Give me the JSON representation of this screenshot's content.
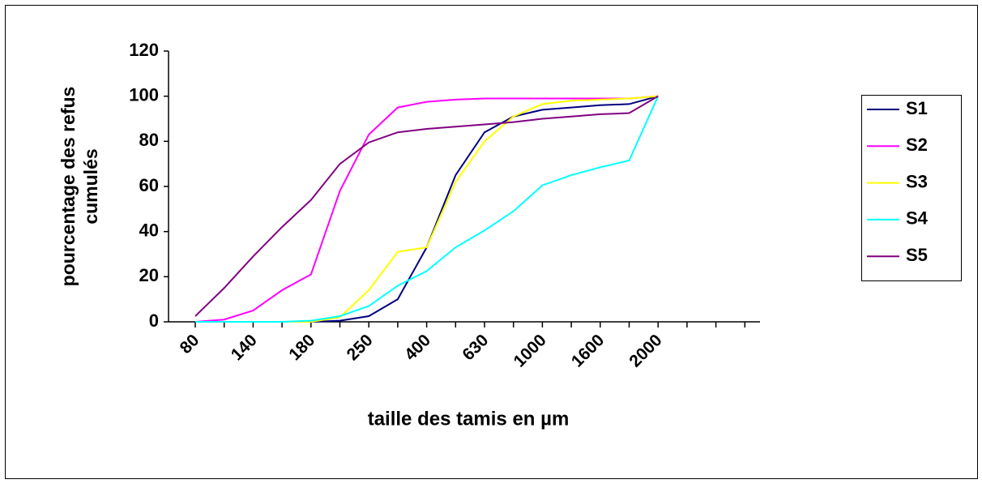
{
  "chart_data": {
    "type": "line",
    "xlabel": "taille des tamis en µm",
    "ylabel": [
      "pourcentage des refus",
      "cumulés"
    ],
    "categories": [
      "80",
      null,
      "140",
      null,
      "180",
      null,
      "250",
      null,
      "400",
      null,
      "630",
      null,
      "1000",
      null,
      "1600",
      null,
      "2000",
      null,
      null,
      null
    ],
    "series": [
      {
        "name": "S1",
        "color": "#000080",
        "values": [
          0,
          0,
          0,
          0,
          0,
          0.5,
          2.5,
          10,
          33,
          65,
          84,
          91,
          94,
          95,
          96,
          96.5,
          100,
          null,
          null,
          null
        ]
      },
      {
        "name": "S2",
        "color": "#ff00ff",
        "values": [
          0,
          1,
          5,
          14,
          21,
          58,
          83,
          95,
          97.5,
          98.5,
          99,
          99,
          99,
          99,
          99,
          99,
          100,
          null,
          null,
          null
        ]
      },
      {
        "name": "S3",
        "color": "#ffff00",
        "values": [
          0,
          0,
          0,
          0,
          0,
          2,
          14,
          31,
          33,
          62,
          80,
          91,
          96.5,
          98,
          98.5,
          99,
          100,
          null,
          null,
          null
        ]
      },
      {
        "name": "S4",
        "color": "#00ffff",
        "values": [
          0,
          0,
          0,
          0,
          0.5,
          2.5,
          7,
          16,
          22.5,
          33,
          40.5,
          49,
          60.5,
          65,
          68.5,
          71.5,
          100,
          null,
          null,
          null
        ]
      },
      {
        "name": "S5",
        "color": "#800080",
        "values": [
          2.5,
          15,
          29,
          42,
          54,
          70,
          79.5,
          84,
          85.5,
          86.5,
          87.5,
          88.5,
          90,
          91,
          92,
          92.5,
          100,
          null,
          null,
          null
        ]
      }
    ],
    "ylim": [
      0,
      120
    ],
    "yticks": [
      0,
      20,
      40,
      60,
      80,
      100,
      120
    ],
    "legend": "right"
  }
}
